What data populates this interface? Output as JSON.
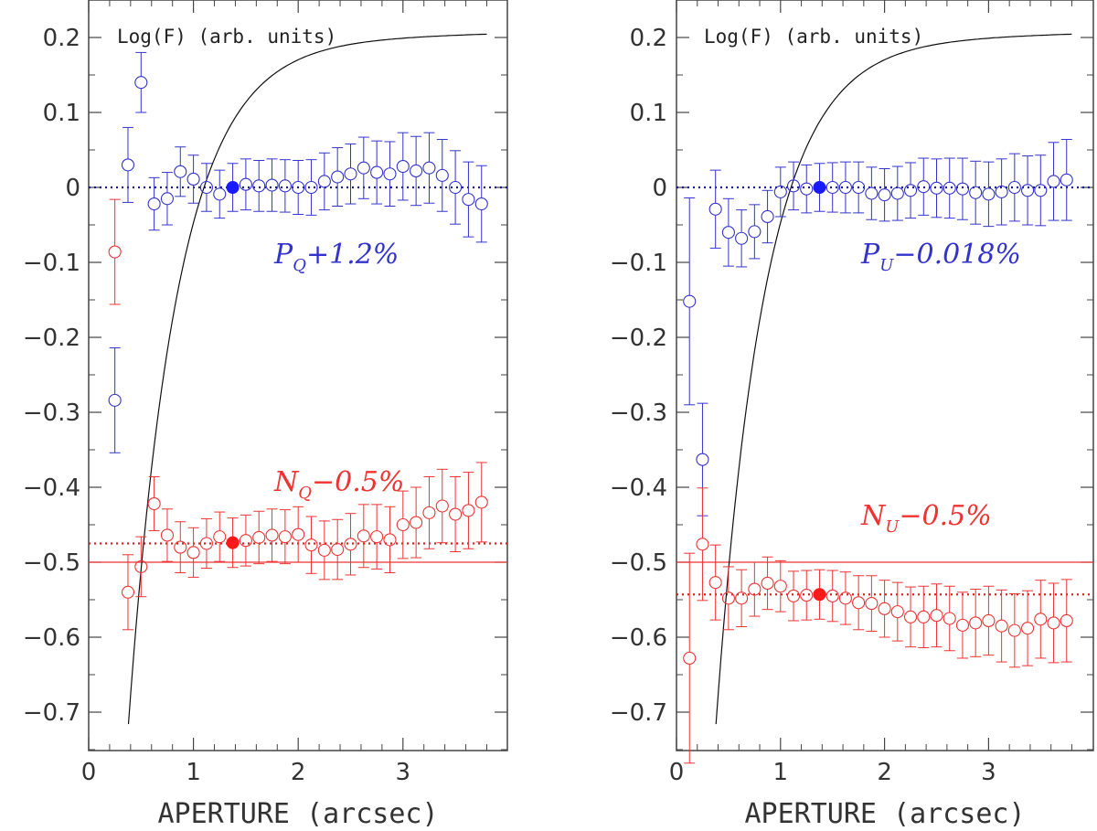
{
  "colors": {
    "blue": "#3333cc",
    "red": "#ee3333",
    "blue_fill": "#1a1aff",
    "red_fill": "#ff1a1a",
    "frame": "#444444",
    "curve": "#111111"
  },
  "chart_data": [
    {
      "type": "scatter",
      "panel": "left",
      "title": "",
      "xlabel": "APERTURE (arcsec)",
      "ylabel": "",
      "xlim": [
        0,
        4.0
      ],
      "ylim": [
        -0.75,
        0.25
      ],
      "x_ticks": [
        "0",
        "1",
        "2",
        "3"
      ],
      "y_ticks": [
        "0.2",
        "0.1",
        "0",
        "−0.1",
        "−0.2",
        "−0.3",
        "−0.4",
        "−0.5",
        "−0.6",
        "−0.7"
      ],
      "curve_label": "Log(F) (arb. units)",
      "reference_lines": {
        "solid_y": -0.5,
        "blue_dotted_y": 0.0,
        "red_dotted_y": -0.475
      },
      "series": [
        {
          "name": "blue",
          "label_main": "P",
          "label_sub": "Q",
          "label_rest": "+1.2%",
          "x": [
            0.25,
            0.375,
            0.5,
            0.625,
            0.75,
            0.875,
            1.0,
            1.125,
            1.25,
            1.375,
            1.5,
            1.625,
            1.75,
            1.875,
            2.0,
            2.125,
            2.25,
            2.375,
            2.5,
            2.625,
            2.75,
            2.875,
            3.0,
            3.125,
            3.25,
            3.375,
            3.5,
            3.625,
            3.75
          ],
          "y": [
            -0.284,
            0.03,
            0.14,
            -0.022,
            -0.015,
            0.021,
            0.011,
            0.0,
            -0.009,
            0.0,
            0.004,
            0.002,
            0.003,
            0.002,
            0.0,
            0.0,
            0.008,
            0.014,
            0.018,
            0.026,
            0.02,
            0.018,
            0.028,
            0.022,
            0.026,
            0.016,
            0.0,
            -0.016,
            -0.022
          ],
          "err": [
            0.07,
            0.05,
            0.04,
            0.035,
            0.035,
            0.033,
            0.032,
            0.032,
            0.032,
            0.032,
            0.034,
            0.034,
            0.035,
            0.035,
            0.036,
            0.037,
            0.038,
            0.039,
            0.04,
            0.041,
            0.042,
            0.043,
            0.045,
            0.046,
            0.047,
            0.048,
            0.049,
            0.05,
            0.051
          ],
          "filled_index": 9
        },
        {
          "name": "red",
          "label_main": "N",
          "label_sub": "Q",
          "label_rest": "−0.5%",
          "x": [
            0.25,
            0.375,
            0.5,
            0.625,
            0.75,
            0.875,
            1.0,
            1.125,
            1.25,
            1.375,
            1.5,
            1.625,
            1.75,
            1.875,
            2.0,
            2.125,
            2.25,
            2.375,
            2.5,
            2.625,
            2.75,
            2.875,
            3.0,
            3.125,
            3.25,
            3.375,
            3.5,
            3.625,
            3.75
          ],
          "y": [
            -0.086,
            -0.54,
            -0.506,
            -0.422,
            -0.464,
            -0.48,
            -0.487,
            -0.475,
            -0.466,
            -0.474,
            -0.471,
            -0.467,
            -0.464,
            -0.466,
            -0.463,
            -0.477,
            -0.484,
            -0.483,
            -0.476,
            -0.465,
            -0.466,
            -0.47,
            -0.45,
            -0.447,
            -0.434,
            -0.425,
            -0.436,
            -0.431,
            -0.42
          ],
          "err": [
            0.07,
            0.05,
            0.04,
            0.036,
            0.035,
            0.034,
            0.033,
            0.033,
            0.033,
            0.033,
            0.034,
            0.035,
            0.035,
            0.036,
            0.037,
            0.038,
            0.039,
            0.04,
            0.041,
            0.042,
            0.043,
            0.044,
            0.045,
            0.047,
            0.048,
            0.049,
            0.05,
            0.051,
            0.053
          ],
          "filled_index": 9
        }
      ]
    },
    {
      "type": "scatter",
      "panel": "right",
      "title": "",
      "xlabel": "APERTURE (arcsec)",
      "ylabel": "",
      "xlim": [
        0,
        4.0
      ],
      "ylim": [
        -0.75,
        0.25
      ],
      "x_ticks": [
        "0",
        "1",
        "2",
        "3"
      ],
      "y_ticks": [
        "0.2",
        "0.1",
        "0",
        "−0.1",
        "−0.2",
        "−0.3",
        "−0.4",
        "−0.5",
        "−0.6",
        "−0.7"
      ],
      "curve_label": "Log(F) (arb. units)",
      "reference_lines": {
        "solid_y": -0.5,
        "blue_dotted_y": 0.0,
        "red_dotted_y": -0.543
      },
      "series": [
        {
          "name": "blue",
          "label_main": "P",
          "label_sub": "U",
          "label_rest": "−0.018%",
          "x": [
            0.125,
            0.25,
            0.375,
            0.5,
            0.625,
            0.75,
            0.875,
            1.0,
            1.125,
            1.25,
            1.375,
            1.5,
            1.625,
            1.75,
            1.875,
            2.0,
            2.125,
            2.25,
            2.375,
            2.5,
            2.625,
            2.75,
            2.875,
            3.0,
            3.125,
            3.25,
            3.375,
            3.5,
            3.625,
            3.75
          ],
          "y": [
            -0.152,
            -0.363,
            -0.029,
            -0.06,
            -0.068,
            -0.059,
            -0.039,
            -0.006,
            0.002,
            -0.002,
            0.0,
            0.0,
            0.0,
            0.0,
            -0.008,
            -0.01,
            -0.008,
            -0.004,
            0.001,
            -0.001,
            -0.001,
            -0.002,
            -0.007,
            -0.009,
            -0.006,
            0.0,
            -0.004,
            -0.004,
            0.008,
            0.01
          ],
          "err": [
            0.138,
            0.075,
            0.052,
            0.045,
            0.038,
            0.036,
            0.035,
            0.033,
            0.032,
            0.032,
            0.032,
            0.033,
            0.034,
            0.034,
            0.035,
            0.035,
            0.036,
            0.037,
            0.038,
            0.039,
            0.04,
            0.041,
            0.042,
            0.043,
            0.044,
            0.045,
            0.046,
            0.047,
            0.052,
            0.054
          ],
          "filled_index": 10
        },
        {
          "name": "red",
          "label_main": "N",
          "label_sub": "U",
          "label_rest": "−0.5%",
          "x": [
            0.125,
            0.25,
            0.375,
            0.5,
            0.625,
            0.75,
            0.875,
            1.0,
            1.125,
            1.25,
            1.375,
            1.5,
            1.625,
            1.75,
            1.875,
            2.0,
            2.125,
            2.25,
            2.375,
            2.5,
            2.625,
            2.75,
            2.875,
            3.0,
            3.125,
            3.25,
            3.375,
            3.5,
            3.625,
            3.75
          ],
          "y": [
            -0.628,
            -0.476,
            -0.527,
            -0.548,
            -0.548,
            -0.536,
            -0.528,
            -0.532,
            -0.545,
            -0.544,
            -0.543,
            -0.545,
            -0.548,
            -0.554,
            -0.555,
            -0.562,
            -0.566,
            -0.573,
            -0.573,
            -0.571,
            -0.575,
            -0.584,
            -0.581,
            -0.578,
            -0.585,
            -0.591,
            -0.588,
            -0.576,
            -0.581,
            -0.578
          ],
          "err": [
            0.14,
            0.075,
            0.05,
            0.042,
            0.038,
            0.036,
            0.035,
            0.034,
            0.033,
            0.033,
            0.033,
            0.034,
            0.035,
            0.036,
            0.037,
            0.038,
            0.039,
            0.04,
            0.041,
            0.042,
            0.043,
            0.044,
            0.045,
            0.046,
            0.048,
            0.049,
            0.05,
            0.052,
            0.053,
            0.055
          ],
          "filled_index": 10
        }
      ]
    }
  ]
}
